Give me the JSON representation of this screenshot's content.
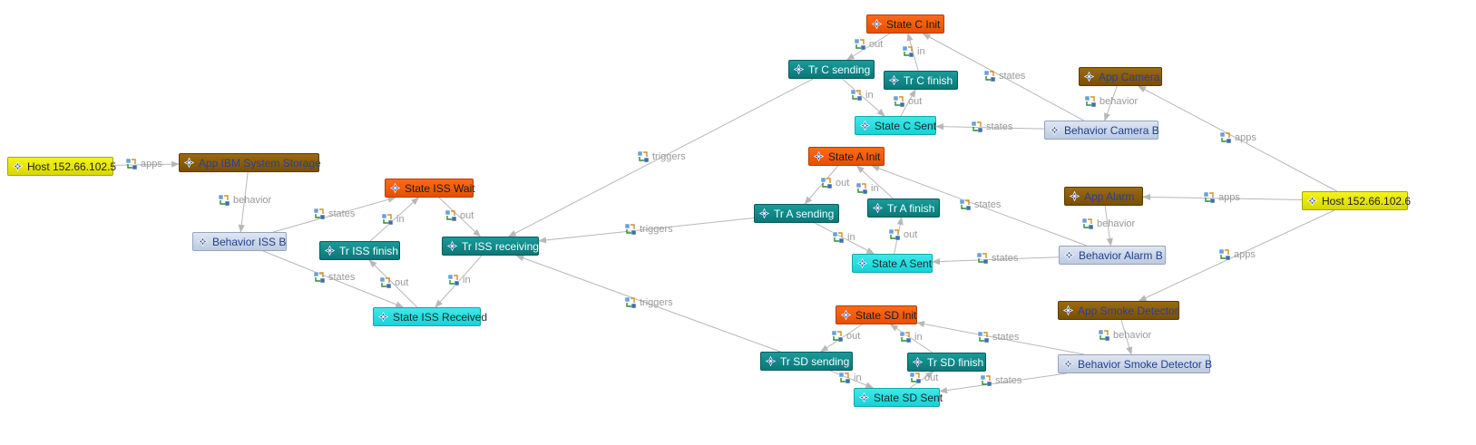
{
  "colors": {
    "edge": "#b8b8b8",
    "edge_label": "#999999",
    "host": "#e8e800",
    "app": "#8a5c08",
    "behavior": "#ccd6e8",
    "init_state": "#f05a10",
    "transition": "#0f8585",
    "sent_state": "#2ddde0"
  },
  "icons": {
    "node": "diamond-gear-icon",
    "edge": "relation-icon"
  },
  "nodes": {
    "host1": "Host 152.66.102.5",
    "app_ibm": "App IBM System Storage",
    "beh_iss": "Behavior ISS B",
    "state_iss_wait": "State ISS Wait",
    "tr_iss_finish": "Tr ISS finish",
    "tr_iss_receiving": "Tr ISS receiving",
    "state_iss_received": "State ISS Received",
    "state_c_init": "State C Init",
    "tr_c_sending": "Tr C sending",
    "tr_c_finish": "Tr C finish",
    "state_c_sent": "State C Sent",
    "app_camera": "App Camera",
    "beh_camera": "Behavior Camera B",
    "state_a_init": "State A Init",
    "tr_a_sending": "Tr A sending",
    "tr_a_finish": "Tr A finish",
    "state_a_sent": "State A Sent",
    "app_alarm": "App Alarm",
    "beh_alarm": "Behavior Alarm B",
    "host2": "Host 152.66.102.6",
    "app_smoke": "App Smoke Detector",
    "state_sd_init": "State SD Init",
    "tr_sd_sending": "Tr SD sending",
    "tr_sd_finish": "Tr SD finish",
    "state_sd_sent": "State SD Sent",
    "beh_smoke": "Behavior Smoke Detector B"
  },
  "edges": [
    {
      "from": "host1",
      "to": "app_ibm",
      "label": "apps"
    },
    {
      "from": "app_ibm",
      "to": "beh_iss",
      "label": "behavior"
    },
    {
      "from": "beh_iss",
      "to": "state_iss_wait",
      "label": "states"
    },
    {
      "from": "beh_iss",
      "to": "state_iss_received",
      "label": "states"
    },
    {
      "from": "tr_iss_finish",
      "to": "state_iss_wait",
      "label": "in"
    },
    {
      "from": "state_iss_received",
      "to": "tr_iss_finish",
      "label": "out"
    },
    {
      "from": "state_iss_wait",
      "to": "tr_iss_receiving",
      "label": "out"
    },
    {
      "from": "tr_iss_receiving",
      "to": "state_iss_received",
      "label": "in"
    },
    {
      "from": "tr_c_sending",
      "to": "tr_iss_receiving",
      "label": "triggers"
    },
    {
      "from": "tr_a_sending",
      "to": "tr_iss_receiving",
      "label": "triggers"
    },
    {
      "from": "tr_sd_sending",
      "to": "tr_iss_receiving",
      "label": "triggers"
    },
    {
      "from": "state_c_init",
      "to": "tr_c_sending",
      "label": "out"
    },
    {
      "from": "tr_c_sending",
      "to": "state_c_sent",
      "label": "in"
    },
    {
      "from": "state_c_sent",
      "to": "tr_c_finish",
      "label": "out"
    },
    {
      "from": "tr_c_finish",
      "to": "state_c_init",
      "label": "in"
    },
    {
      "from": "beh_camera",
      "to": "state_c_init",
      "label": "states"
    },
    {
      "from": "beh_camera",
      "to": "state_c_sent",
      "label": "states"
    },
    {
      "from": "app_camera",
      "to": "beh_camera",
      "label": "behavior"
    },
    {
      "from": "host2",
      "to": "app_camera",
      "label": "apps"
    },
    {
      "from": "state_a_init",
      "to": "tr_a_sending",
      "label": "out"
    },
    {
      "from": "tr_a_sending",
      "to": "state_a_sent",
      "label": "in"
    },
    {
      "from": "state_a_sent",
      "to": "tr_a_finish",
      "label": "out"
    },
    {
      "from": "tr_a_finish",
      "to": "state_a_init",
      "label": "in"
    },
    {
      "from": "beh_alarm",
      "to": "state_a_init",
      "label": "states"
    },
    {
      "from": "beh_alarm",
      "to": "state_a_sent",
      "label": "states"
    },
    {
      "from": "app_alarm",
      "to": "beh_alarm",
      "label": "behavior"
    },
    {
      "from": "host2",
      "to": "app_alarm",
      "label": "apps"
    },
    {
      "from": "host2",
      "to": "app_smoke",
      "label": "apps"
    },
    {
      "from": "app_smoke",
      "to": "beh_smoke",
      "label": "behavior"
    },
    {
      "from": "beh_smoke",
      "to": "state_sd_init",
      "label": "states"
    },
    {
      "from": "beh_smoke",
      "to": "state_sd_sent",
      "label": "states"
    },
    {
      "from": "state_sd_init",
      "to": "tr_sd_sending",
      "label": "out"
    },
    {
      "from": "tr_sd_sending",
      "to": "state_sd_sent",
      "label": "in"
    },
    {
      "from": "state_sd_sent",
      "to": "tr_sd_finish",
      "label": "out"
    },
    {
      "from": "tr_sd_finish",
      "to": "state_sd_init",
      "label": "in"
    }
  ]
}
